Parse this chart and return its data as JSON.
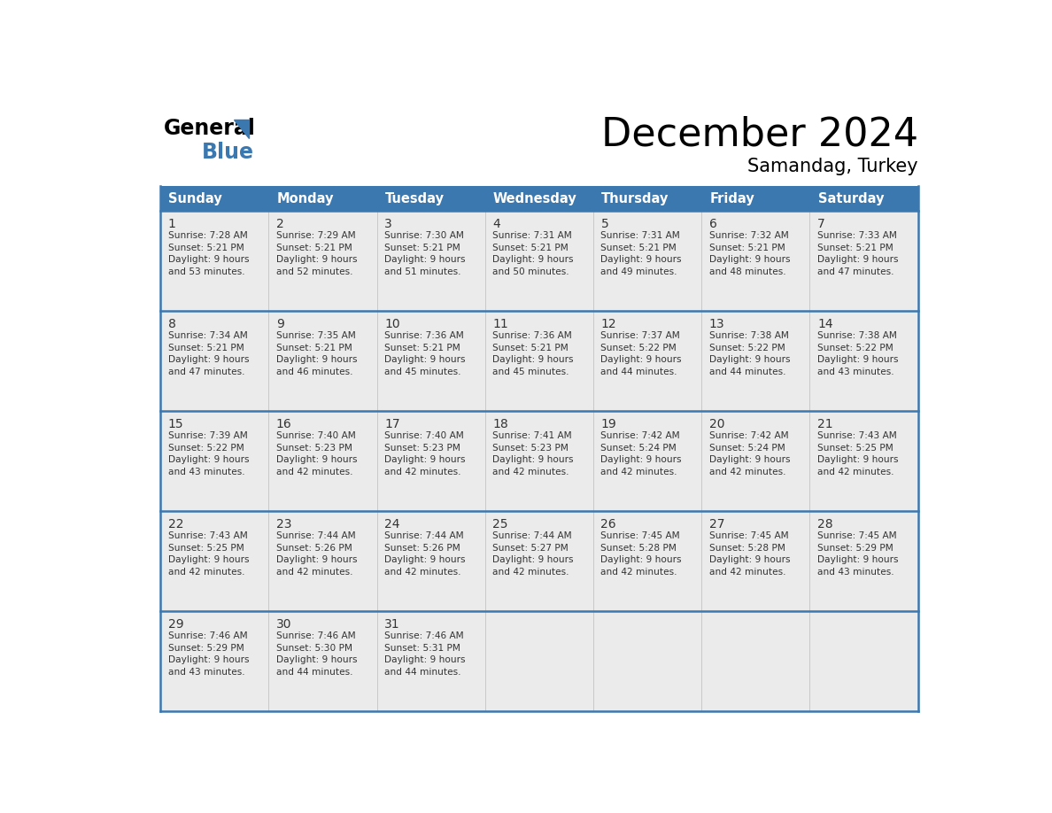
{
  "title": "December 2024",
  "subtitle": "Samandag, Turkey",
  "days_of_week": [
    "Sunday",
    "Monday",
    "Tuesday",
    "Wednesday",
    "Thursday",
    "Friday",
    "Saturday"
  ],
  "header_bg": "#3b78b0",
  "header_text_color": "#ffffff",
  "row_bg_light": "#ebebeb",
  "border_color": "#3b78b0",
  "text_color": "#333333",
  "cell_data": [
    [
      {
        "day": 1,
        "sunrise": "7:28 AM",
        "sunset": "5:21 PM",
        "daylight_h": "9 hours",
        "daylight_m": "and 53 minutes."
      },
      {
        "day": 2,
        "sunrise": "7:29 AM",
        "sunset": "5:21 PM",
        "daylight_h": "9 hours",
        "daylight_m": "and 52 minutes."
      },
      {
        "day": 3,
        "sunrise": "7:30 AM",
        "sunset": "5:21 PM",
        "daylight_h": "9 hours",
        "daylight_m": "and 51 minutes."
      },
      {
        "day": 4,
        "sunrise": "7:31 AM",
        "sunset": "5:21 PM",
        "daylight_h": "9 hours",
        "daylight_m": "and 50 minutes."
      },
      {
        "day": 5,
        "sunrise": "7:31 AM",
        "sunset": "5:21 PM",
        "daylight_h": "9 hours",
        "daylight_m": "and 49 minutes."
      },
      {
        "day": 6,
        "sunrise": "7:32 AM",
        "sunset": "5:21 PM",
        "daylight_h": "9 hours",
        "daylight_m": "and 48 minutes."
      },
      {
        "day": 7,
        "sunrise": "7:33 AM",
        "sunset": "5:21 PM",
        "daylight_h": "9 hours",
        "daylight_m": "and 47 minutes."
      }
    ],
    [
      {
        "day": 8,
        "sunrise": "7:34 AM",
        "sunset": "5:21 PM",
        "daylight_h": "9 hours",
        "daylight_m": "and 47 minutes."
      },
      {
        "day": 9,
        "sunrise": "7:35 AM",
        "sunset": "5:21 PM",
        "daylight_h": "9 hours",
        "daylight_m": "and 46 minutes."
      },
      {
        "day": 10,
        "sunrise": "7:36 AM",
        "sunset": "5:21 PM",
        "daylight_h": "9 hours",
        "daylight_m": "and 45 minutes."
      },
      {
        "day": 11,
        "sunrise": "7:36 AM",
        "sunset": "5:21 PM",
        "daylight_h": "9 hours",
        "daylight_m": "and 45 minutes."
      },
      {
        "day": 12,
        "sunrise": "7:37 AM",
        "sunset": "5:22 PM",
        "daylight_h": "9 hours",
        "daylight_m": "and 44 minutes."
      },
      {
        "day": 13,
        "sunrise": "7:38 AM",
        "sunset": "5:22 PM",
        "daylight_h": "9 hours",
        "daylight_m": "and 44 minutes."
      },
      {
        "day": 14,
        "sunrise": "7:38 AM",
        "sunset": "5:22 PM",
        "daylight_h": "9 hours",
        "daylight_m": "and 43 minutes."
      }
    ],
    [
      {
        "day": 15,
        "sunrise": "7:39 AM",
        "sunset": "5:22 PM",
        "daylight_h": "9 hours",
        "daylight_m": "and 43 minutes."
      },
      {
        "day": 16,
        "sunrise": "7:40 AM",
        "sunset": "5:23 PM",
        "daylight_h": "9 hours",
        "daylight_m": "and 42 minutes."
      },
      {
        "day": 17,
        "sunrise": "7:40 AM",
        "sunset": "5:23 PM",
        "daylight_h": "9 hours",
        "daylight_m": "and 42 minutes."
      },
      {
        "day": 18,
        "sunrise": "7:41 AM",
        "sunset": "5:23 PM",
        "daylight_h": "9 hours",
        "daylight_m": "and 42 minutes."
      },
      {
        "day": 19,
        "sunrise": "7:42 AM",
        "sunset": "5:24 PM",
        "daylight_h": "9 hours",
        "daylight_m": "and 42 minutes."
      },
      {
        "day": 20,
        "sunrise": "7:42 AM",
        "sunset": "5:24 PM",
        "daylight_h": "9 hours",
        "daylight_m": "and 42 minutes."
      },
      {
        "day": 21,
        "sunrise": "7:43 AM",
        "sunset": "5:25 PM",
        "daylight_h": "9 hours",
        "daylight_m": "and 42 minutes."
      }
    ],
    [
      {
        "day": 22,
        "sunrise": "7:43 AM",
        "sunset": "5:25 PM",
        "daylight_h": "9 hours",
        "daylight_m": "and 42 minutes."
      },
      {
        "day": 23,
        "sunrise": "7:44 AM",
        "sunset": "5:26 PM",
        "daylight_h": "9 hours",
        "daylight_m": "and 42 minutes."
      },
      {
        "day": 24,
        "sunrise": "7:44 AM",
        "sunset": "5:26 PM",
        "daylight_h": "9 hours",
        "daylight_m": "and 42 minutes."
      },
      {
        "day": 25,
        "sunrise": "7:44 AM",
        "sunset": "5:27 PM",
        "daylight_h": "9 hours",
        "daylight_m": "and 42 minutes."
      },
      {
        "day": 26,
        "sunrise": "7:45 AM",
        "sunset": "5:28 PM",
        "daylight_h": "9 hours",
        "daylight_m": "and 42 minutes."
      },
      {
        "day": 27,
        "sunrise": "7:45 AM",
        "sunset": "5:28 PM",
        "daylight_h": "9 hours",
        "daylight_m": "and 42 minutes."
      },
      {
        "day": 28,
        "sunrise": "7:45 AM",
        "sunset": "5:29 PM",
        "daylight_h": "9 hours",
        "daylight_m": "and 43 minutes."
      }
    ],
    [
      {
        "day": 29,
        "sunrise": "7:46 AM",
        "sunset": "5:29 PM",
        "daylight_h": "9 hours",
        "daylight_m": "and 43 minutes."
      },
      {
        "day": 30,
        "sunrise": "7:46 AM",
        "sunset": "5:30 PM",
        "daylight_h": "9 hours",
        "daylight_m": "and 44 minutes."
      },
      {
        "day": 31,
        "sunrise": "7:46 AM",
        "sunset": "5:31 PM",
        "daylight_h": "9 hours",
        "daylight_m": "and 44 minutes."
      },
      null,
      null,
      null,
      null
    ]
  ],
  "logo_text_general": "General",
  "logo_text_blue": "Blue",
  "logo_triangle_color": "#3b78b0"
}
